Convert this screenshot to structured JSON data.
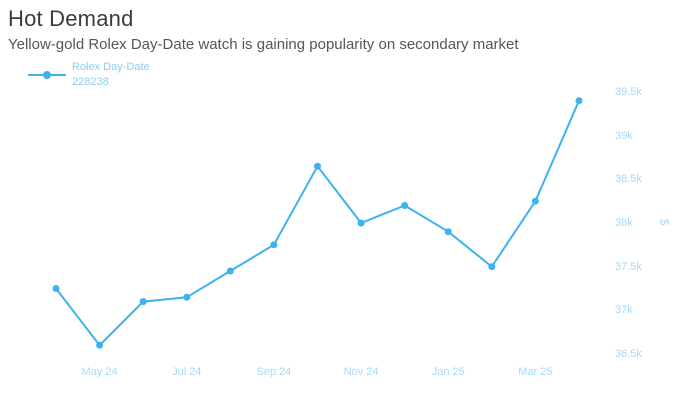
{
  "header": {
    "title": "Hot Demand",
    "subtitle": "Yellow-gold Rolex Day-Date watch is gaining popularity on secondary market"
  },
  "legend": {
    "series_name": "Rolex Day-Date",
    "series_model": "228238"
  },
  "colors": {
    "line": "#3eb1ef",
    "tick": "#a6d9f8",
    "legend": "#8bcef3",
    "title": "#3c3c3c",
    "subtitle": "#565656"
  },
  "chart_data": {
    "type": "line",
    "title": "Hot Demand",
    "subtitle": "Yellow-gold Rolex Day-Date watch is gaining popularity on secondary market",
    "x": [
      "Apr 24",
      "May 24",
      "Jun 24",
      "Jul 24",
      "Aug 24",
      "Sep 24",
      "Oct 24",
      "Nov 24",
      "Dec 24",
      "Jan 25",
      "Feb 25",
      "Mar 25",
      "Apr 25"
    ],
    "series": [
      {
        "name": "Rolex Day-Date 228238",
        "values_usd": [
          37250,
          36600,
          37100,
          37150,
          37450,
          37750,
          38650,
          38000,
          38200,
          37900,
          37500,
          38250,
          39400
        ]
      }
    ],
    "x_tick_labels": [
      "May 24",
      "Jul 24",
      "Sep 24",
      "Nov 24",
      "Jan 25",
      "Mar 25"
    ],
    "x_tick_indices": [
      1,
      3,
      5,
      7,
      9,
      11
    ],
    "y_ticks": [
      36500,
      37000,
      37500,
      38000,
      38500,
      39000,
      39500
    ],
    "y_tick_labels": [
      "36.5k",
      "37k",
      "37.5k",
      "38k",
      "38.5k",
      "39k",
      "39.5k"
    ],
    "ylabel": "$",
    "xlabel": "",
    "ylim": [
      36250,
      39750
    ],
    "grid": false,
    "legend_position": "top-left",
    "y_axis_side": "right",
    "marker": "dot"
  }
}
